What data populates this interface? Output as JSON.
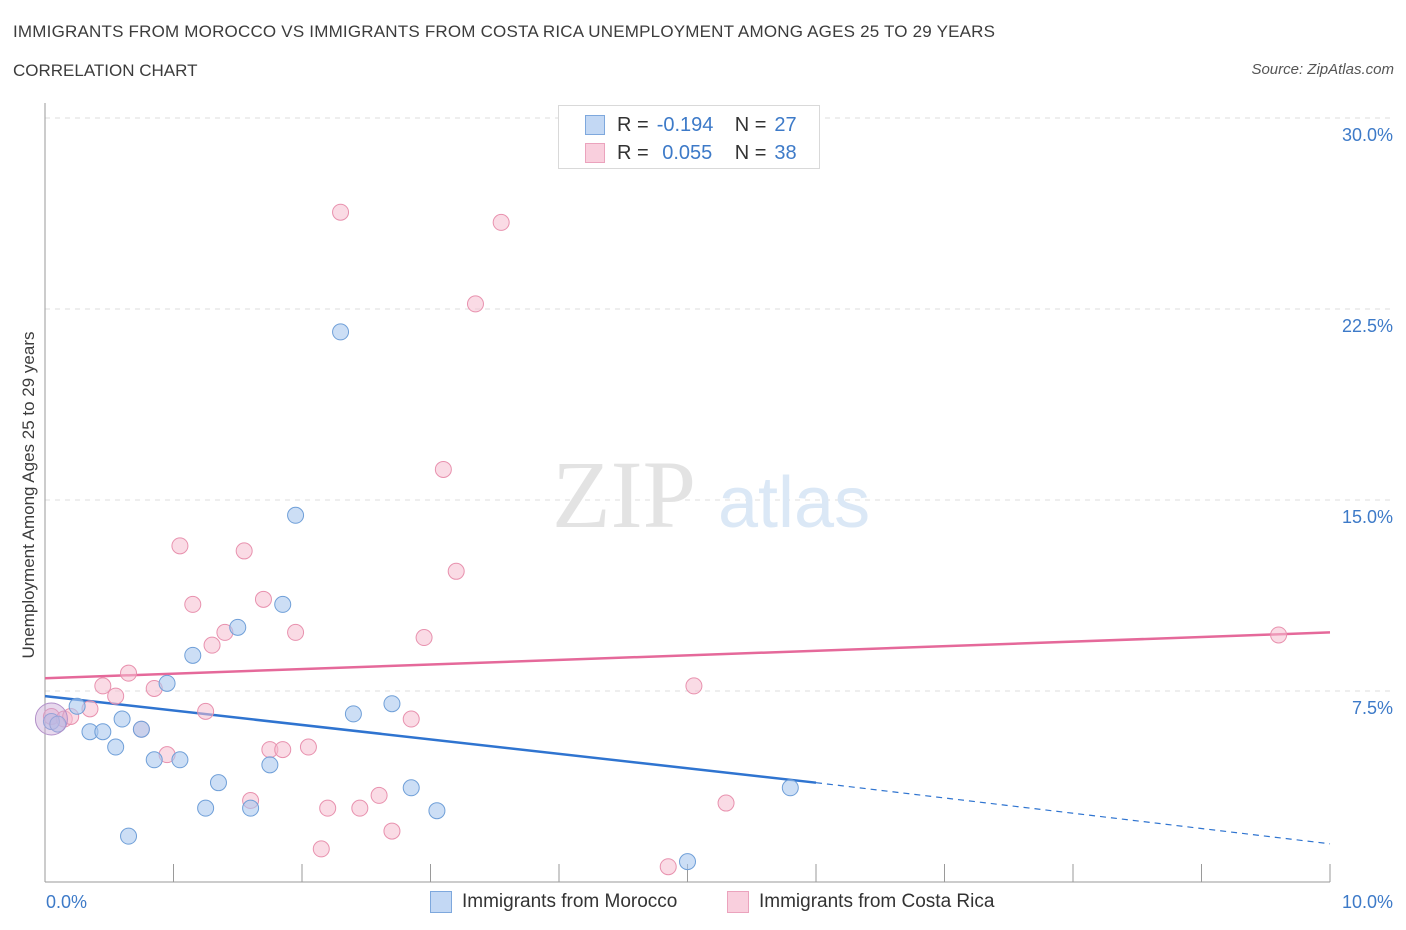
{
  "header": {
    "title": "IMMIGRANTS FROM MOROCCO VS IMMIGRANTS FROM COSTA RICA UNEMPLOYMENT AMONG AGES 25 TO 29 YEARS",
    "subtitle": "CORRELATION CHART",
    "source": "Source: ZipAtlas.com"
  },
  "watermark": {
    "zip": "ZIP",
    "atlas": "atlas"
  },
  "colors": {
    "morocco_fill": "#aac8ef",
    "morocco_stroke": "#6f9fd8",
    "morocco_line": "#2f74d0",
    "costarica_fill": "#f5bdd0",
    "costarica_stroke": "#e891ae",
    "costarica_line": "#e5699a",
    "tick_text": "#3d7ac8",
    "grid": "#dddddd"
  },
  "legend": {
    "rows": [
      {
        "r_label": "R =",
        "r_value": "-0.194",
        "n_label": "N =",
        "n_value": "27"
      },
      {
        "r_label": "R =",
        "r_value": " 0.055",
        "n_label": "N =",
        "n_value": "38"
      }
    ]
  },
  "chart_data": {
    "type": "scatter",
    "title": "Immigrants from Morocco vs Immigrants from Costa Rica Unemployment Among Ages 25 to 29 years",
    "xlabel": "",
    "ylabel": "Unemployment Among Ages 25 to 29 years",
    "xlim": [
      0,
      10
    ],
    "ylim": [
      0,
      30
    ],
    "x_tick_labels": [
      "0.0%",
      "10.0%"
    ],
    "y_ticks": [
      7.5,
      15.0,
      22.5,
      30.0
    ],
    "y_tick_labels": [
      "7.5%",
      "15.0%",
      "22.5%",
      "30.0%"
    ],
    "grid": true,
    "series": [
      {
        "name": "Immigrants from Morocco",
        "color": "#aac8ef",
        "x": [
          0.05,
          0.1,
          0.25,
          0.35,
          0.45,
          0.55,
          0.6,
          0.75,
          0.85,
          0.95,
          1.05,
          1.15,
          1.25,
          1.35,
          1.5,
          1.6,
          1.75,
          1.85,
          1.95,
          2.3,
          2.4,
          2.7,
          2.85,
          3.05,
          5.0,
          5.8,
          0.65
        ],
        "y": [
          6.3,
          6.2,
          6.9,
          5.9,
          5.9,
          5.3,
          6.4,
          6.0,
          4.8,
          7.8,
          4.8,
          8.9,
          2.9,
          3.9,
          10.0,
          2.9,
          4.6,
          10.9,
          14.4,
          21.6,
          6.6,
          7.0,
          3.7,
          2.8,
          0.8,
          3.7,
          1.8
        ],
        "trend_start": [
          0.0,
          7.3
        ],
        "trend_end_solid": [
          6.0,
          3.9
        ],
        "trend_end_dashed": [
          10.0,
          1.5
        ]
      },
      {
        "name": "Immigrants from Costa Rica",
        "color": "#f5bdd0",
        "x": [
          0.05,
          0.15,
          0.2,
          0.35,
          0.45,
          0.55,
          0.65,
          0.75,
          0.85,
          0.95,
          1.05,
          1.15,
          1.25,
          1.3,
          1.4,
          1.55,
          1.6,
          1.7,
          1.75,
          1.85,
          1.95,
          2.05,
          2.15,
          2.2,
          2.3,
          2.45,
          2.6,
          2.7,
          2.85,
          2.95,
          3.1,
          3.2,
          3.35,
          3.55,
          4.85,
          5.05,
          5.3,
          9.6
        ],
        "y": [
          6.5,
          6.4,
          6.5,
          6.8,
          7.7,
          7.3,
          8.2,
          6.0,
          7.6,
          5.0,
          13.2,
          10.9,
          6.7,
          9.3,
          9.8,
          13.0,
          3.2,
          11.1,
          5.2,
          5.2,
          9.8,
          5.3,
          1.3,
          2.9,
          26.3,
          2.9,
          3.4,
          2.0,
          6.4,
          9.6,
          16.2,
          12.2,
          22.7,
          25.9,
          0.6,
          7.7,
          3.1,
          9.7
        ],
        "trend_start": [
          0.0,
          8.0
        ],
        "trend_end": [
          10.0,
          9.8
        ]
      }
    ]
  },
  "bottom_legend": {
    "items": [
      {
        "label": "Immigrants from Morocco"
      },
      {
        "label": "Immigrants from Costa Rica"
      }
    ]
  }
}
